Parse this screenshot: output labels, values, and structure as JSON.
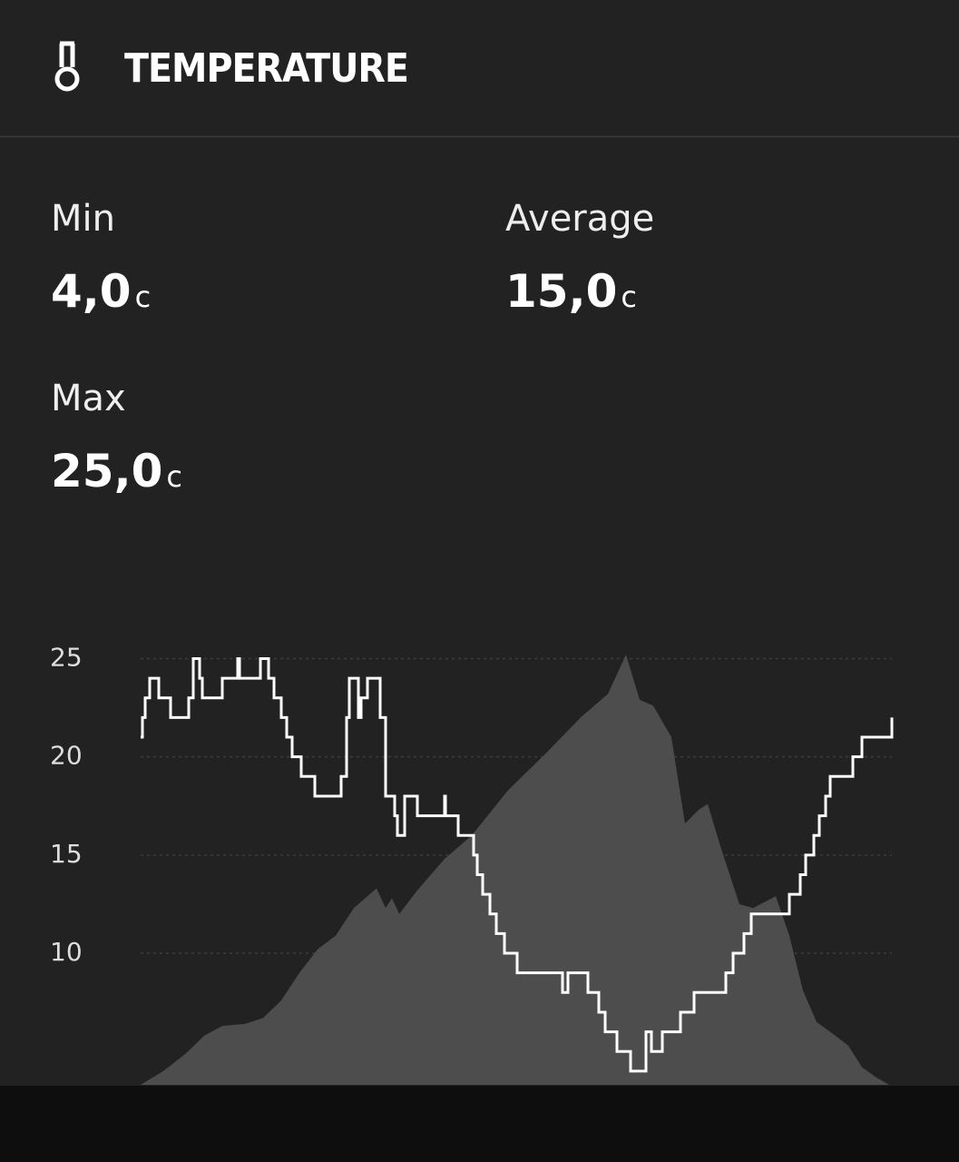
{
  "header": {
    "title": "TEMPERATURE"
  },
  "stats": [
    {
      "label": "Min",
      "value": "4,0",
      "unit": "c"
    },
    {
      "label": "Average",
      "value": "15,0",
      "unit": "c"
    },
    {
      "label": "Max",
      "value": "25,0",
      "unit": "c"
    }
  ],
  "chart_data": {
    "type": "line",
    "ylim": [
      3.3,
      25.3
    ],
    "xlim": [
      0,
      828
    ],
    "yticks": [
      10,
      15,
      20,
      25
    ],
    "grid": true,
    "series": [
      {
        "style": "area",
        "color": "#4d4d4d",
        "x": [
          0,
          25,
          50,
          70,
          90,
          115,
          135,
          155,
          175,
          195,
          215,
          235,
          260,
          270,
          277,
          285,
          305,
          335,
          365,
          405,
          445,
          485,
          515,
          535,
          550,
          565,
          585,
          600,
          615,
          625,
          640,
          660,
          675,
          700,
          715,
          730,
          745,
          760,
          780,
          795,
          810,
          825
        ],
        "values": [
          3.3,
          4,
          4.9,
          5.8,
          6.3,
          6.4,
          6.7,
          7.6,
          9,
          10.2,
          10.9,
          12.3,
          13.3,
          12.3,
          12.8,
          12,
          13.2,
          14.8,
          16,
          18.3,
          20.1,
          22,
          23.2,
          25.2,
          22.9,
          22.6,
          21,
          16.6,
          17.3,
          17.6,
          15.3,
          12.5,
          12.3,
          12.9,
          10.9,
          8.1,
          6.5,
          6,
          5.3,
          4.2,
          3.7,
          3.3
        ]
      },
      {
        "style": "step",
        "color": "#ffffff",
        "x": [
          0,
          2,
          5,
          10,
          20,
          33,
          53,
          58,
          65,
          68,
          90,
          107,
          109,
          132,
          141,
          147,
          155,
          161,
          167,
          177,
          192,
          221,
          227,
          230,
          240,
          243,
          250,
          264,
          270,
          280,
          283,
          291,
          305,
          335,
          336,
          350,
          367,
          371,
          377,
          385,
          392,
          401,
          415,
          465,
          471,
          493,
          505,
          512,
          525,
          540,
          557,
          563,
          575,
          595,
          610,
          645,
          653,
          665,
          673,
          715,
          727,
          733,
          742,
          748,
          755,
          760,
          785,
          795,
          828
        ],
        "values": [
          21,
          22,
          23,
          24,
          23,
          22,
          23,
          25,
          24,
          23,
          24,
          25,
          24,
          25,
          24,
          23,
          22,
          21,
          20,
          19,
          18,
          19,
          22,
          24,
          22,
          23,
          24,
          22,
          18,
          17,
          16,
          18,
          17,
          18,
          17,
          16,
          15,
          14,
          13,
          12,
          11,
          10,
          9,
          8,
          9,
          8,
          7,
          6,
          5,
          4,
          6,
          5,
          6,
          7,
          8,
          9,
          10,
          11,
          12,
          13,
          14,
          15,
          16,
          17,
          18,
          19,
          20,
          21,
          22
        ]
      }
    ]
  }
}
